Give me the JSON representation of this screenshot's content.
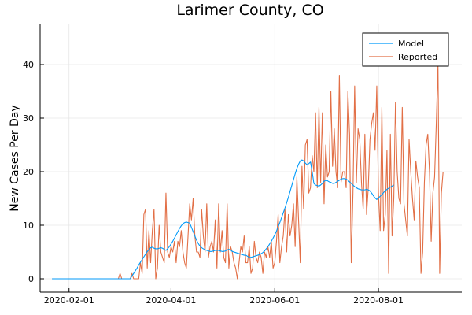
{
  "chart_data": {
    "type": "line",
    "title": "Larimer County, CO",
    "xlabel": "",
    "ylabel": "New Cases Per Day",
    "x_start": "2020-01-22",
    "x_end": "2020-09-14",
    "xlim": [
      "2020-01-15",
      "2020-09-19"
    ],
    "ylim": [
      -2.5,
      47.5
    ],
    "x_ticks": [
      "2020-02-01",
      "2020-04-01",
      "2020-06-01",
      "2020-08-01"
    ],
    "y_ticks": [
      0,
      10,
      20,
      30,
      40
    ],
    "grid": true,
    "legend_position": "top-right",
    "series": [
      {
        "name": "Model",
        "color": "#009af9",
        "values": [
          0,
          0,
          0,
          0,
          0,
          0,
          0,
          0,
          0,
          0,
          0,
          0,
          0,
          0,
          0,
          0,
          0,
          0,
          0,
          0,
          0,
          0,
          0,
          0,
          0,
          0,
          0,
          0,
          0,
          0,
          0,
          0,
          0,
          0,
          0,
          0,
          0,
          0,
          0,
          0,
          0,
          0,
          0,
          0,
          0,
          0,
          0,
          0.5,
          1,
          1.5,
          2,
          2.6,
          3.1,
          3.6,
          4.1,
          4.6,
          5.1,
          5.4,
          5.8,
          5.9,
          5.7,
          5.6,
          5.6,
          5.7,
          5.8,
          5.7,
          5.5,
          5.3,
          5.6,
          6,
          6.5,
          7,
          7.6,
          8.2,
          8.8,
          9.4,
          9.9,
          10.3,
          10.5,
          10.6,
          10.5,
          10.4,
          9.6,
          8.8,
          8,
          7.2,
          6.6,
          6.1,
          5.8,
          5.6,
          5.4,
          5.3,
          5.2,
          5.1,
          5.1,
          5.2,
          5.3,
          5.3,
          5.3,
          5.2,
          5.1,
          5.1,
          5.2,
          5.4,
          5.5,
          5.4,
          5.1,
          5,
          4.9,
          4.8,
          4.7,
          4.6,
          4.5,
          4.4,
          4.4,
          4.2,
          4,
          4,
          4.1,
          4.2,
          4.3,
          4.4,
          4.5,
          4.7,
          4.9,
          5.2,
          5.6,
          6,
          6.5,
          7,
          7.6,
          8.2,
          8.9,
          9.7,
          10.5,
          11.4,
          12.3,
          13.2,
          14.2,
          15.2,
          16.3,
          17.4,
          18.5,
          19.6,
          20.6,
          21.4,
          22,
          22.2,
          22,
          21.6,
          21.3,
          21.5,
          21.8,
          20,
          17.8,
          17.5,
          17.4,
          17.3,
          17.5,
          17.8,
          18.2,
          18.4,
          18.3,
          18.1,
          18,
          17.8,
          17.8,
          18,
          18.2,
          18.4,
          18.6,
          18.7,
          18.7,
          18.6,
          18.4,
          18.1,
          17.8,
          17.5,
          17.2,
          17,
          16.8,
          16.7,
          16.6,
          16.6,
          16.6,
          16.7,
          16.6,
          16.4,
          16,
          15.5,
          15.1,
          14.8,
          15.1,
          15.4,
          15.7,
          16.1,
          16.4,
          16.7,
          16.9,
          17.1,
          17.3,
          17.5
        ]
      },
      {
        "name": "Reported",
        "color": "#e26f46",
        "values": [
          0,
          0,
          0,
          0,
          0,
          0,
          0,
          0,
          0,
          0,
          0,
          0,
          0,
          0,
          0,
          0,
          0,
          0,
          0,
          0,
          0,
          0,
          0,
          0,
          0,
          0,
          0,
          0,
          0,
          0,
          0,
          0,
          0,
          0,
          0,
          0,
          0,
          0,
          0,
          0,
          1,
          0,
          0,
          0,
          0,
          0,
          0,
          1,
          0,
          0,
          0,
          0,
          3,
          1,
          12,
          13,
          2,
          9,
          3,
          9,
          13,
          0,
          2,
          10,
          5,
          4,
          3,
          16,
          5,
          4,
          6,
          5,
          7,
          3,
          7,
          6,
          9,
          5,
          3,
          2,
          8,
          14,
          11,
          15,
          8,
          5,
          5,
          4,
          13,
          8,
          5,
          14,
          4,
          6,
          7,
          5,
          11,
          2,
          14,
          5,
          9,
          4,
          3,
          14,
          2,
          6,
          5,
          3,
          2,
          0,
          3,
          6,
          5,
          8,
          3,
          3,
          6,
          1,
          2,
          7,
          4,
          3,
          5,
          4,
          1,
          5,
          4,
          6,
          4,
          7,
          2,
          3,
          7,
          12,
          3,
          6,
          8,
          13,
          5,
          12,
          8,
          10,
          14,
          6,
          19,
          11,
          3,
          21,
          13,
          25,
          26,
          16,
          17,
          23,
          20,
          31,
          17,
          32,
          18,
          31,
          14,
          25,
          19,
          20,
          35,
          21,
          28,
          20,
          17,
          38,
          18,
          20,
          20,
          17,
          35,
          27,
          3,
          16,
          36,
          18,
          28,
          26,
          18,
          13,
          27,
          12,
          17,
          26,
          29,
          31,
          24,
          36,
          16,
          9,
          32,
          9,
          12,
          24,
          1,
          27,
          8,
          15,
          33,
          20,
          15,
          14,
          32,
          14,
          11,
          8,
          26,
          20,
          15,
          11,
          22,
          19,
          17,
          1,
          5,
          18,
          25,
          27,
          20,
          7,
          16,
          19,
          29,
          40,
          1,
          16,
          20
        ]
      }
    ]
  }
}
